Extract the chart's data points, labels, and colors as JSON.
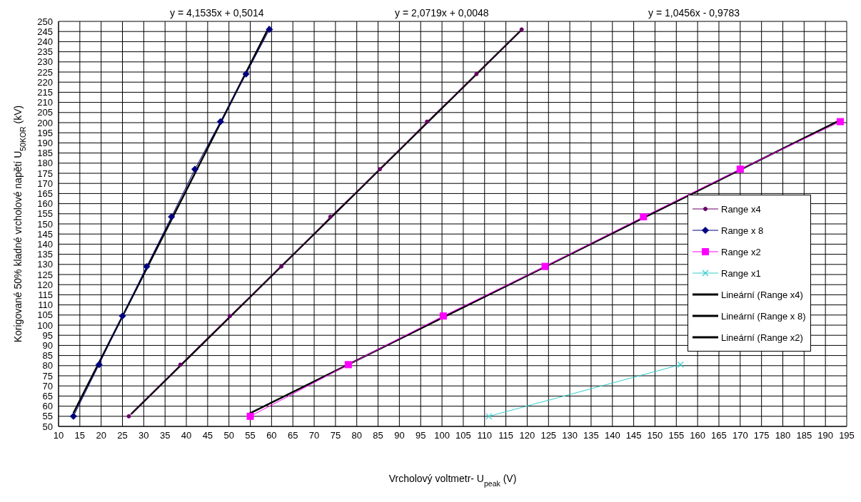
{
  "chart_data": {
    "type": "line",
    "xlabel": "Vrcholový  voltmetr-  U$_{peak}$ (V)",
    "ylabel": "Korigované  50% kladné  vrcholové  napětí  U$_{50KOR}$ (kV)",
    "annotations": [
      "y = 4,1535x  + 0,5014",
      "y = 2,0719x  + 0,0048",
      "y = 1,0456x  - 0,9783"
    ],
    "series": [
      {
        "name": "Range x4",
        "color": "#660066",
        "marker": "circle",
        "x": [
          26.5,
          38.6,
          50.2,
          62.3,
          73.8,
          85.4,
          96.5,
          108.1,
          118.7
        ],
        "values": [
          55,
          80.5,
          104.5,
          129,
          153.5,
          177,
          200.5,
          224,
          246
        ]
      },
      {
        "name": "Range x 8",
        "color": "#000080",
        "marker": "diamond",
        "x": [
          13.5,
          19.5,
          25,
          30.7,
          36.5,
          42,
          48,
          54,
          59.5
        ],
        "values": [
          55,
          80.5,
          104.5,
          129,
          153.5,
          177,
          200.5,
          224,
          246
        ]
      },
      {
        "name": "Range x2",
        "color": "#ff00ff",
        "marker": "square",
        "x": [
          55,
          78,
          100.3,
          124.2,
          147.3,
          170,
          193.5
        ],
        "values": [
          55,
          80.5,
          104.5,
          129,
          153.5,
          177,
          200.5
        ]
      },
      {
        "name": "Range x1",
        "color": "#33cccc",
        "marker": "cross",
        "x": [
          111,
          156
        ],
        "values": [
          55,
          80.5
        ]
      },
      {
        "name": "Lineární (Range x4)",
        "color": "#000000",
        "marker": "none",
        "x": [
          27,
          119
        ],
        "values": [
          56,
          246.5
        ]
      },
      {
        "name": "Lineární (Range x 8)",
        "color": "#000000",
        "marker": "none",
        "x": [
          13.5,
          59.5
        ],
        "values": [
          56.6,
          247.6
        ]
      },
      {
        "name": "Lineární (Range x2)",
        "color": "#000000",
        "marker": "none",
        "x": [
          54.5,
          193.5
        ],
        "values": [
          56,
          201.3
        ]
      }
    ],
    "xlim": [
      10,
      195
    ],
    "xticks": [
      10,
      15,
      20,
      25,
      30,
      35,
      40,
      45,
      50,
      55,
      60,
      65,
      70,
      75,
      80,
      85,
      90,
      95,
      100,
      105,
      110,
      115,
      120,
      125,
      130,
      135,
      140,
      145,
      150,
      155,
      160,
      165,
      170,
      175,
      180,
      185,
      190,
      195
    ],
    "ylim": [
      50,
      250
    ],
    "yticks": [
      50,
      55,
      60,
      65,
      70,
      75,
      80,
      85,
      90,
      95,
      100,
      105,
      110,
      115,
      120,
      125,
      130,
      135,
      140,
      145,
      150,
      155,
      160,
      165,
      170,
      175,
      180,
      185,
      190,
      195,
      200,
      205,
      210,
      215,
      220,
      225,
      230,
      235,
      240,
      245,
      250
    ],
    "grid": true,
    "legend": "right",
    "line_style": "solid"
  }
}
